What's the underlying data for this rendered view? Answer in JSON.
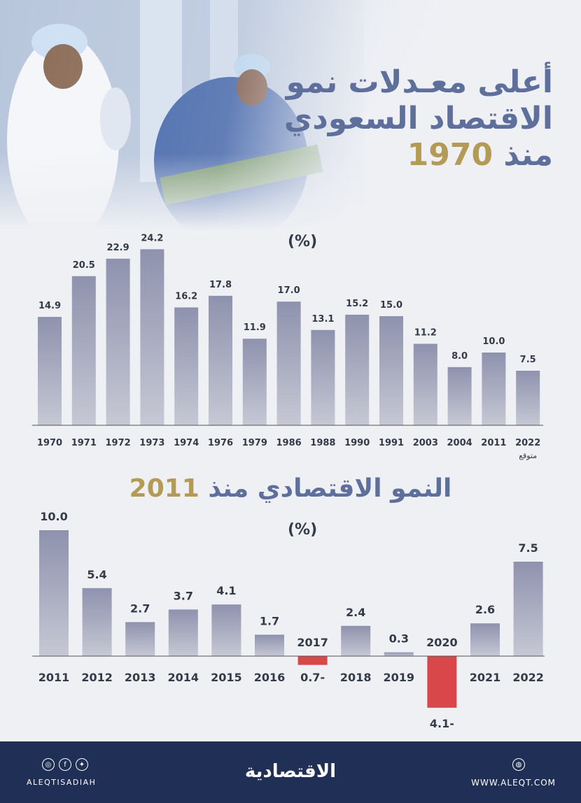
{
  "title": {
    "line1": "أعلى معـدلات نمو",
    "line2": "الاقتصاد السعودي",
    "line3_prefix": "منذ ",
    "line3_year": "1970"
  },
  "section2_title": {
    "prefix": "النمو الاقتصادي منذ ",
    "year": "2011"
  },
  "colors": {
    "bar": "#9a9db5",
    "negative": "#d9474b",
    "title": "#5f6f9c",
    "accent": "#b39a55",
    "footer": "#1f2f55"
  },
  "chart_data": [
    {
      "type": "bar",
      "unit_label": "(%)",
      "categories": [
        "1970",
        "1971",
        "1972",
        "1973",
        "1974",
        "1976",
        "1979",
        "1986",
        "1988",
        "1990",
        "1991",
        "2003",
        "2004",
        "2011",
        "2022"
      ],
      "category_notes": {
        "2022": "متوقع"
      },
      "values": [
        14.9,
        20.5,
        22.9,
        24.2,
        16.2,
        17.8,
        11.9,
        17.0,
        13.1,
        15.2,
        15.0,
        11.2,
        8.0,
        10.0,
        7.5
      ],
      "value_labels": [
        "14.9",
        "20.5",
        "22.9",
        "24.2",
        "16.2",
        "17.8",
        "11.9",
        "17.0",
        "13.1",
        "15.2",
        "15.0",
        "11.2",
        "8.0",
        "10.0",
        "7.5"
      ],
      "ylim": [
        0,
        25
      ]
    },
    {
      "type": "bar",
      "unit_label": "(%)",
      "categories": [
        "2011",
        "2012",
        "2013",
        "2014",
        "2015",
        "2016",
        "2017",
        "2018",
        "2019",
        "2020",
        "2021",
        "2022"
      ],
      "values": [
        10.0,
        5.4,
        2.7,
        3.7,
        4.1,
        1.7,
        -0.7,
        2.4,
        0.3,
        -4.1,
        2.6,
        7.5
      ],
      "value_labels": [
        "10.0",
        "5.4",
        "2.7",
        "3.7",
        "4.1",
        "1.7",
        "0.7-",
        "2.4",
        "0.3",
        "4.1-",
        "2.6",
        "7.5"
      ],
      "ylim": [
        -4.1,
        10.0
      ]
    }
  ],
  "footer": {
    "handle": "ALEQTISADIAH",
    "logo": "الاقتصادية",
    "website": "WWW.ALEQT.COM",
    "social_icons": [
      "instagram-icon",
      "facebook-icon",
      "twitter-icon"
    ]
  }
}
